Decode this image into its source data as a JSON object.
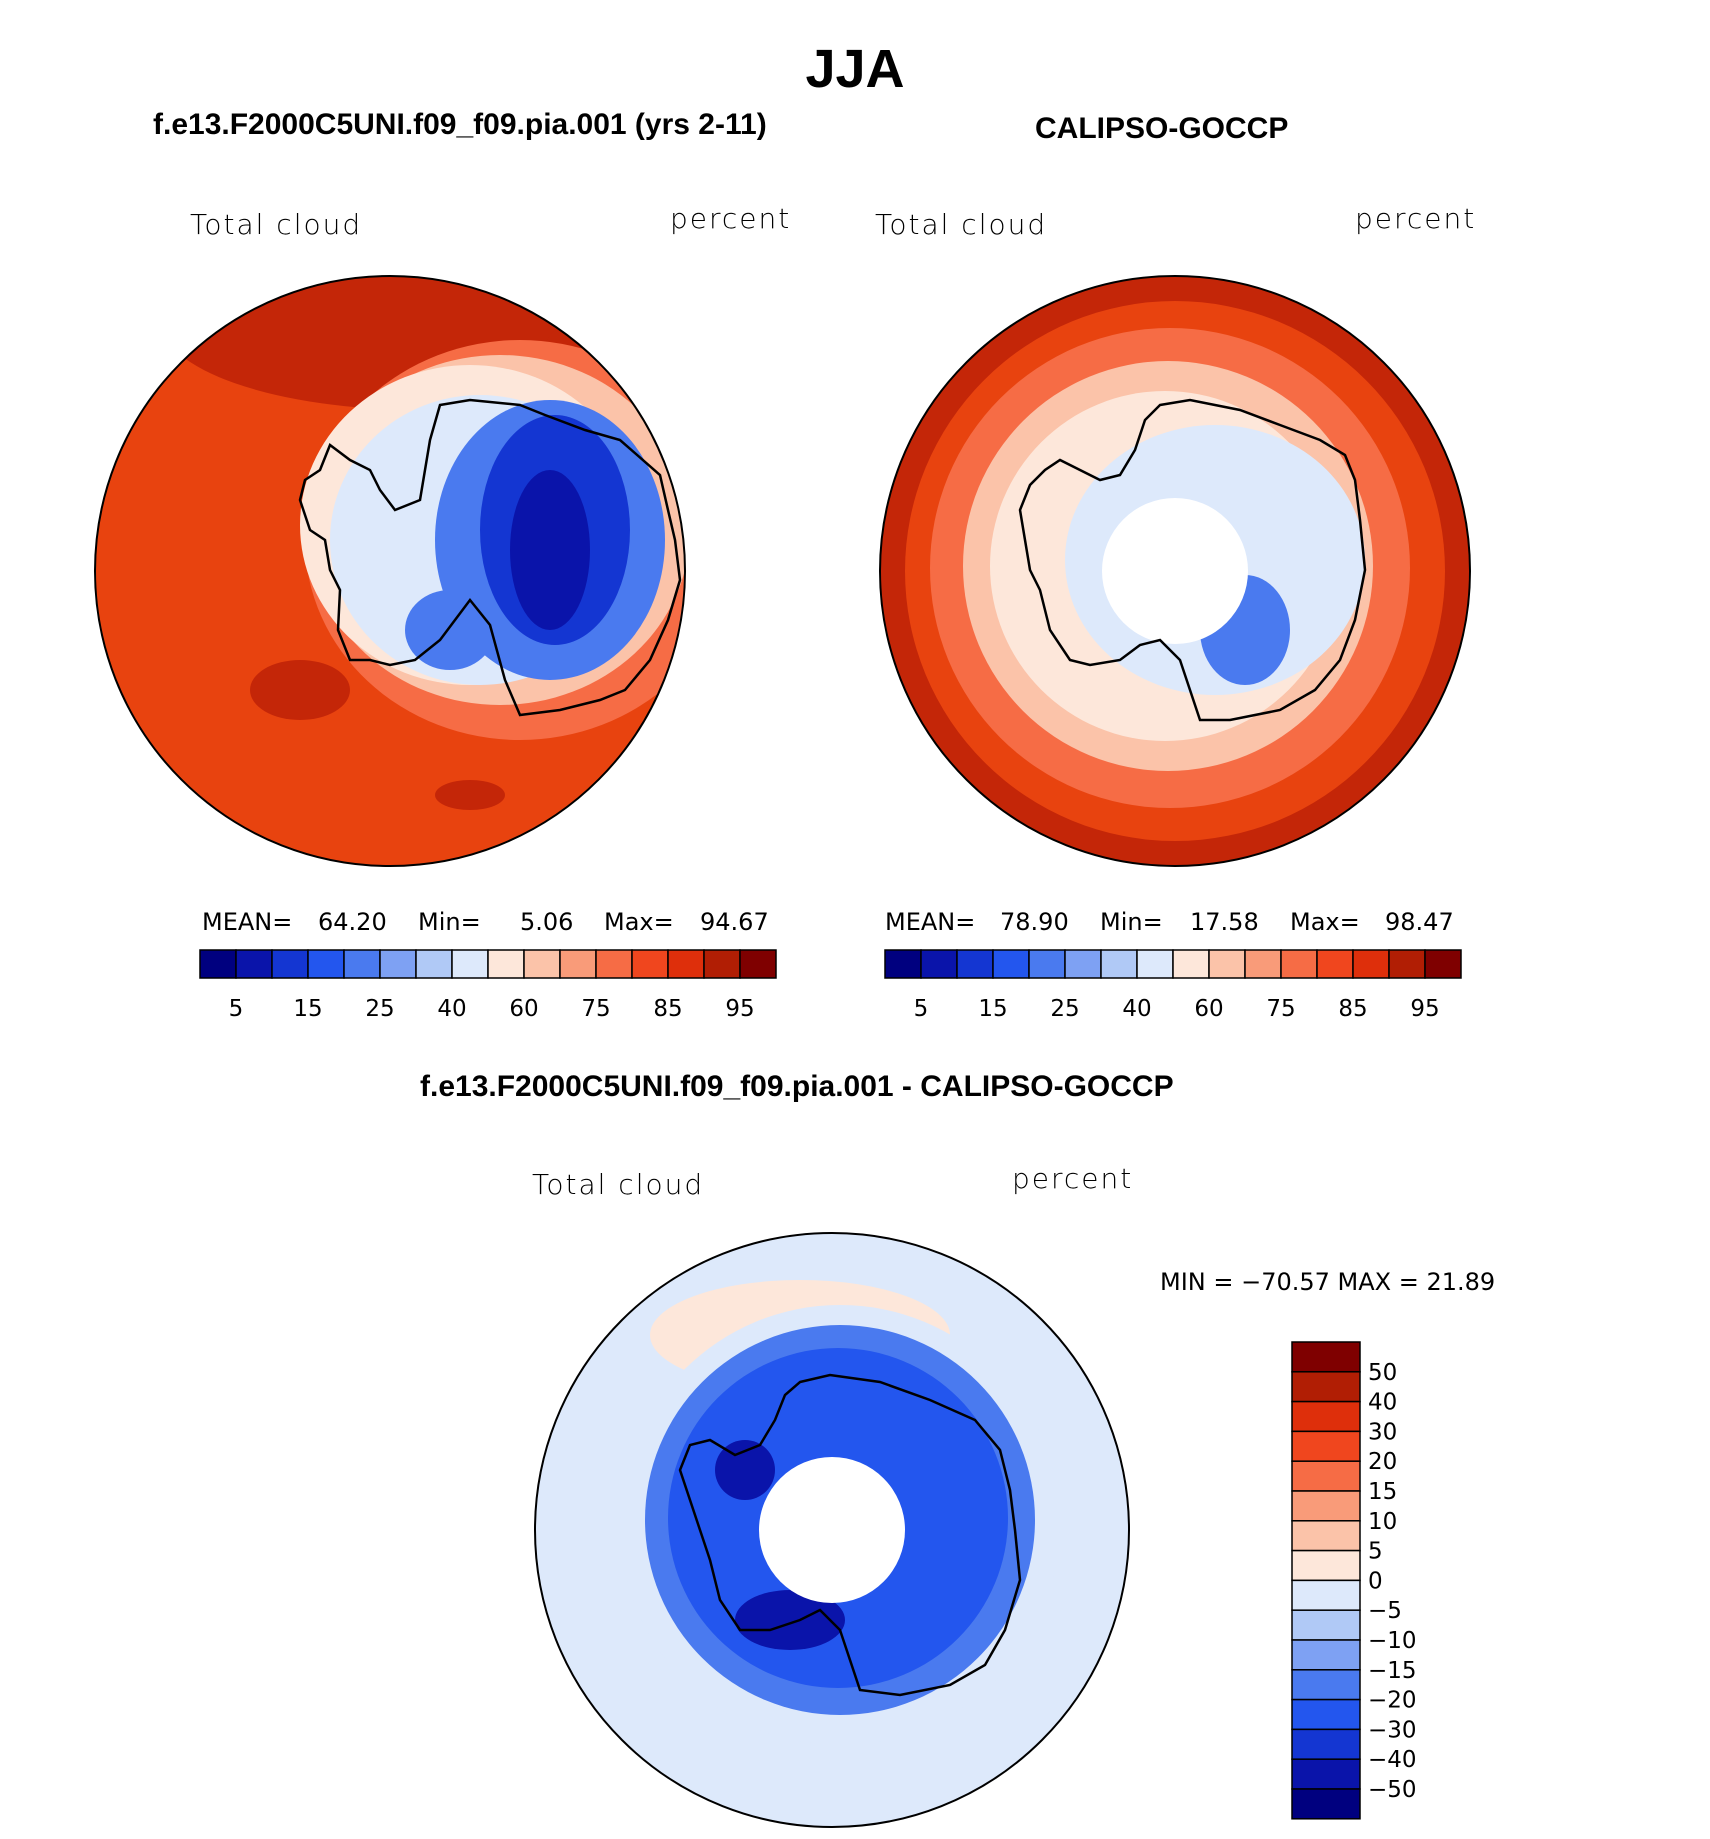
{
  "season_title": "JJA",
  "panels": [
    {
      "id": "model",
      "case_title": "f.e13.F2000C5UNI.f09_f09.pia.001 (yrs 2-11)",
      "variable": "Total cloud",
      "units": "percent",
      "stats": {
        "mean_label": "MEAN=",
        "mean": "64.20",
        "min_label": "Min=",
        "min": "5.06",
        "max_label": "Max=",
        "max": "94.67"
      }
    },
    {
      "id": "obs",
      "case_title": "CALIPSO-GOCCP",
      "variable": "Total cloud",
      "units": "percent",
      "stats": {
        "mean_label": "MEAN=",
        "mean": "78.90",
        "min_label": "Min=",
        "min": "17.58",
        "max_label": "Max=",
        "max": "98.47"
      }
    },
    {
      "id": "diff",
      "case_title": "f.e13.F2000C5UNI.f09_f09.pia.001 - CALIPSO-GOCCP",
      "variable": "Total cloud",
      "units": "percent",
      "stats_text": "MIN = −70.57 MAX =   21.89"
    }
  ],
  "colorbar_abs": {
    "colors": [
      "#00007f",
      "#0a14aa",
      "#1436d2",
      "#2356ee",
      "#4a7aef",
      "#7ea1f3",
      "#b0c9f6",
      "#dde9fb",
      "#fde7da",
      "#fbc3a9",
      "#f99b79",
      "#f66c45",
      "#f0461e",
      "#de2f0b",
      "#b11e04",
      "#7f0000"
    ],
    "tick_labels": [
      "5",
      "15",
      "25",
      "40",
      "60",
      "75",
      "85",
      "95"
    ]
  },
  "colorbar_diff": {
    "colors": [
      "#7f0000",
      "#b11e04",
      "#de2f0b",
      "#f0461e",
      "#f66c45",
      "#f99b79",
      "#fbc3a9",
      "#fde7da",
      "#dde9fb",
      "#b0c9f6",
      "#7ea1f3",
      "#4a7aef",
      "#2356ee",
      "#1436d2",
      "#0a14aa",
      "#00007f"
    ],
    "tick_labels": [
      "50",
      "40",
      "30",
      "20",
      "15",
      "10",
      "5",
      "0",
      "−5",
      "−10",
      "−15",
      "−20",
      "−30",
      "−40",
      "−50"
    ]
  },
  "map_colors": {
    "ocean_abs": "#e8430f",
    "ring_dark": "#c42608",
    "mid_red": "#f66c45",
    "light_red": "#fbc3a9",
    "pale": "#fde7da",
    "pale_blue": "#dde9fb",
    "blue": "#4a7aef",
    "deep_blue": "#1436d2",
    "navy": "#0a14aa",
    "diff_ocean": "#dde9fb",
    "diff_blue": "#2356ee"
  }
}
